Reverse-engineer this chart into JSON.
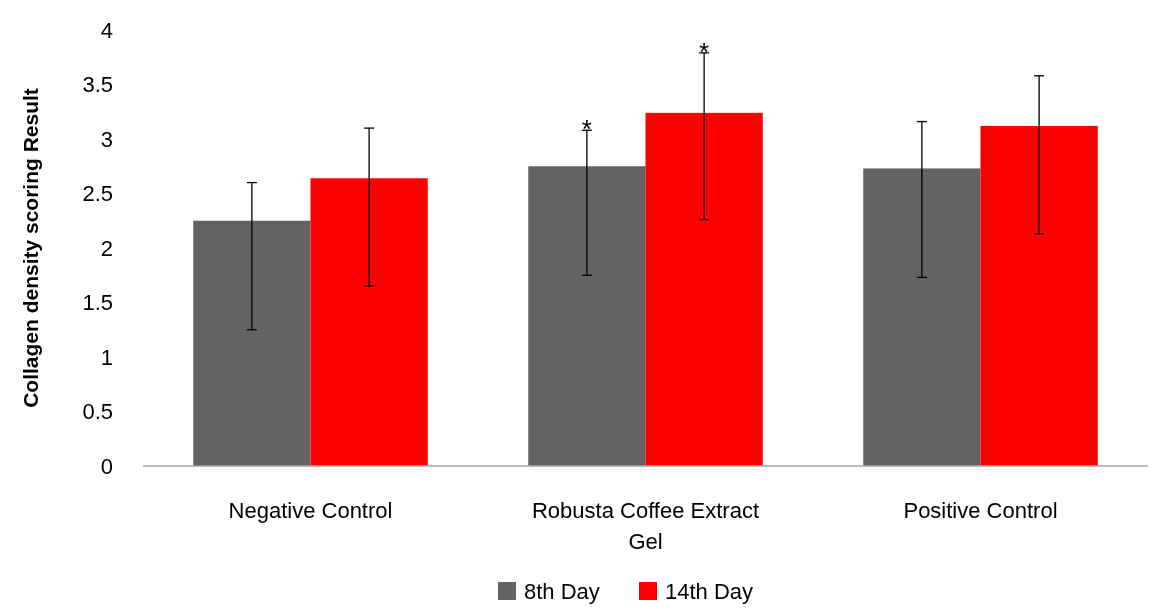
{
  "chart_data": {
    "type": "bar",
    "ylabel": "Collagen density scoring Result",
    "categories": [
      "Negative Control",
      "Robusta Coffee Extract Gel",
      "Positive Control"
    ],
    "series": [
      {
        "name": "8th Day",
        "color": "#636363",
        "values": [
          2.25,
          2.75,
          2.73
        ],
        "errors": [
          [
            1.25,
            2.6
          ],
          [
            1.75,
            3.08
          ],
          [
            1.73,
            3.16
          ]
        ]
      },
      {
        "name": "14th Day",
        "color": "#ff0000",
        "values": [
          2.64,
          3.24,
          3.12
        ],
        "errors": [
          [
            1.65,
            3.1
          ],
          [
            2.26,
            3.79
          ],
          [
            2.13,
            3.58
          ]
        ]
      }
    ],
    "ylim": [
      0,
      4
    ],
    "yticks": [
      0,
      0.5,
      1,
      1.5,
      2,
      2.5,
      3,
      3.5,
      4
    ],
    "grid": false,
    "legend": "bottom",
    "annotations": [
      "*",
      "*"
    ]
  }
}
